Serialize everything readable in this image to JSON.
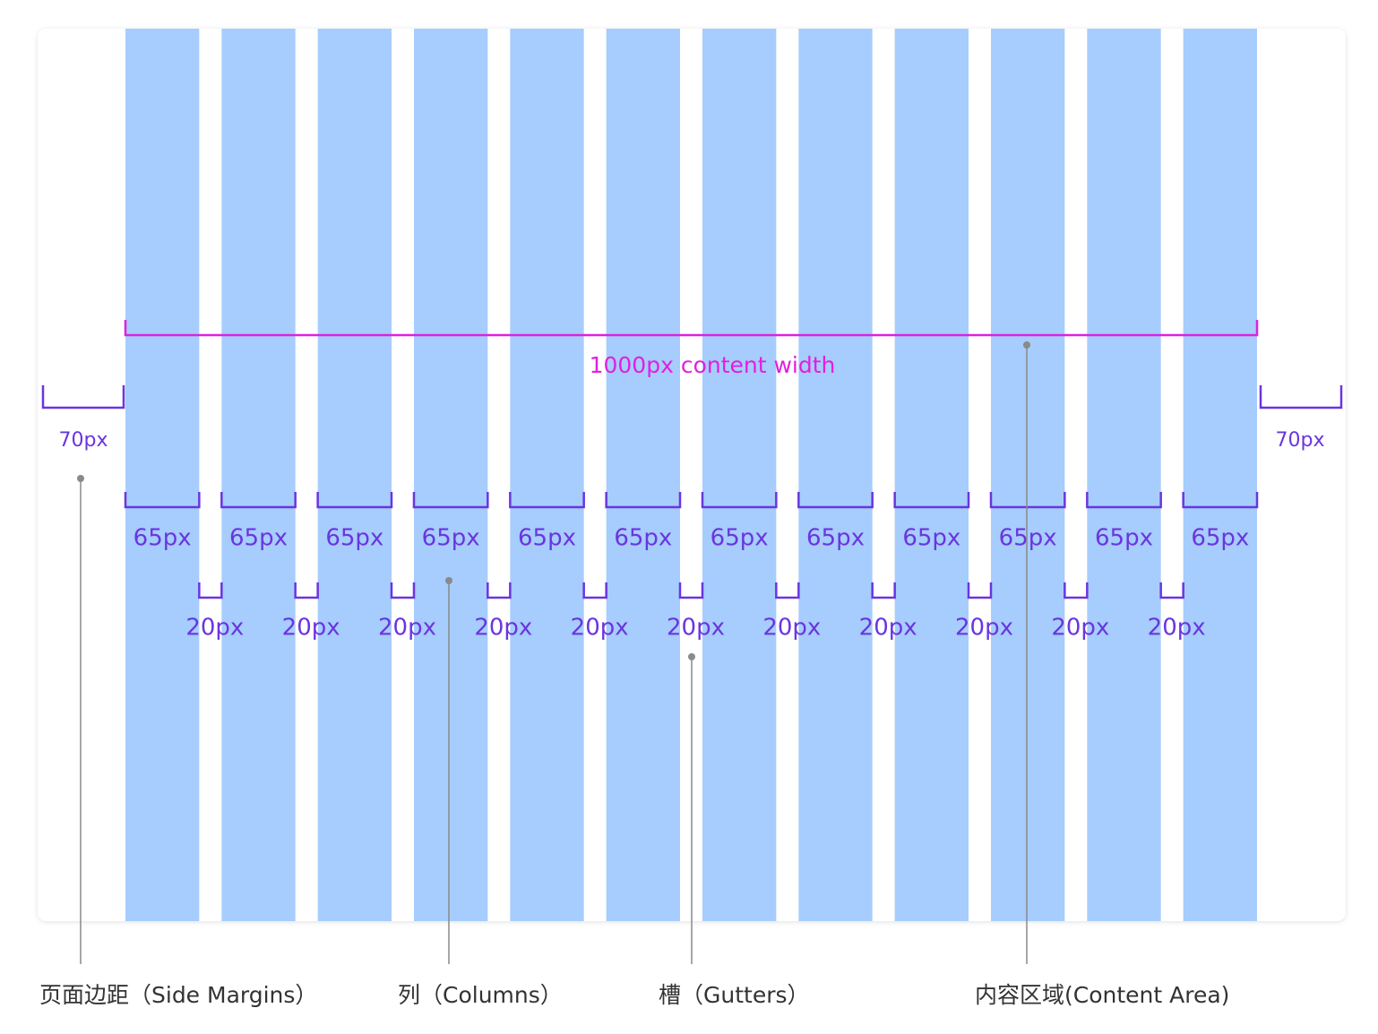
{
  "content_width_label": "1000px content width",
  "margin_labels": [
    "70px",
    "70px"
  ],
  "column_labels": [
    "65px",
    "65px",
    "65px",
    "65px",
    "65px",
    "65px",
    "65px",
    "65px",
    "65px",
    "65px",
    "65px",
    "65px"
  ],
  "gutter_labels": [
    "20px",
    "20px",
    "20px",
    "20px",
    "20px",
    "20px",
    "20px",
    "20px",
    "20px",
    "20px",
    "20px"
  ],
  "captions": [
    "页面边距（Side Margins）",
    "列（Columns）",
    "槽（Gutters）",
    "内容区域(Content Area)"
  ]
}
